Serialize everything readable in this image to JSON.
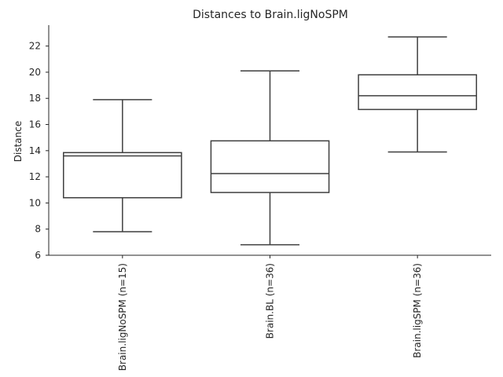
{
  "chart_data": {
    "type": "box",
    "title": "Distances to Brain.ligNoSPM",
    "xlabel": "",
    "ylabel": "Distance",
    "ylim": [
      6,
      23.6
    ],
    "yticks": [
      6,
      8,
      10,
      12,
      14,
      16,
      18,
      20,
      22
    ],
    "grid": false,
    "categories": [
      "Brain.ligNoSPM (n=15)",
      "Brain.BL (n=36)",
      "Brain.ligSPM (n=36)"
    ],
    "boxes": [
      {
        "whisker_low": 7.8,
        "q1": 10.4,
        "median": 13.6,
        "q3": 13.85,
        "whisker_high": 17.9
      },
      {
        "whisker_low": 6.8,
        "q1": 10.8,
        "median": 12.25,
        "q3": 14.75,
        "whisker_high": 20.1
      },
      {
        "whisker_low": 13.9,
        "q1": 17.15,
        "median": 18.2,
        "q3": 19.8,
        "whisker_high": 22.7
      }
    ],
    "colors": {
      "line": "#3f3f3f",
      "fill": "#ffffff",
      "axis": "#262626"
    }
  }
}
